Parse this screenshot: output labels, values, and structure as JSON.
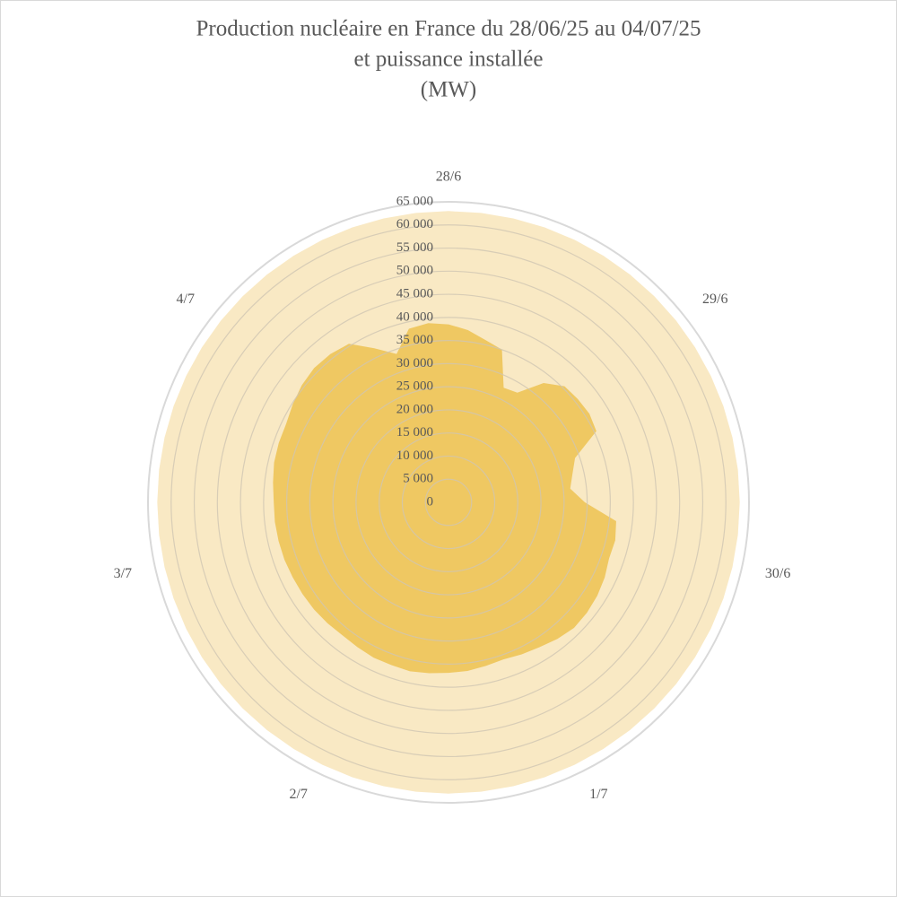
{
  "chart_data": {
    "type": "radar",
    "title": [
      "Production nucléaire en France du 28/06/25 au 04/07/25",
      "et puissance installée",
      "(MW)"
    ],
    "categories": [
      "28/6",
      null,
      null,
      null,
      null,
      null,
      null,
      null,
      "29/6",
      null,
      null,
      null,
      null,
      null,
      null,
      null,
      "30/6",
      null,
      null,
      null,
      null,
      null,
      null,
      null,
      "1/7",
      null,
      null,
      null,
      null,
      null,
      null,
      null,
      "2/7",
      null,
      null,
      null,
      null,
      null,
      null,
      null,
      "3/7",
      null,
      null,
      null,
      null,
      null,
      null,
      null,
      "4/7",
      null,
      null,
      null,
      null,
      null,
      null,
      null
    ],
    "series": [
      {
        "color": "#f9e9c4",
        "values": [
          63000,
          63000,
          63000,
          63000,
          63000,
          63000,
          63000,
          63000,
          63000,
          63000,
          63000,
          63000,
          63000,
          63000,
          63000,
          63000,
          63000,
          63000,
          63000,
          63000,
          63000,
          63000,
          63000,
          63000,
          63000,
          63000,
          63000,
          63000,
          63000,
          63000,
          63000,
          63000,
          63000,
          63000,
          63000,
          63000,
          63000,
          63000,
          63000,
          63000,
          63000,
          63000,
          63000,
          63000,
          63000,
          63000,
          63000,
          63000,
          63000,
          63000,
          63000,
          63000,
          63000,
          63000,
          63000,
          63000
        ]
      },
      {
        "color": "#efc862",
        "values": [
          38500,
          37500,
          36000,
          35000,
          27500,
          28000,
          33000,
          35500,
          35800,
          36000,
          35500,
          29000,
          27500,
          26500,
          29500,
          36500,
          37000,
          36800,
          37500,
          38000,
          38300,
          38400,
          37800,
          37000,
          36500,
          36000,
          36300,
          36700,
          36900,
          37200,
          37500,
          37300,
          37300,
          37000,
          36800,
          37000,
          37200,
          37300,
          37400,
          37600,
          37700,
          37800,
          37800,
          38200,
          38700,
          38900,
          39000,
          39800,
          40600,
          41100,
          41000,
          40500,
          37000,
          34000,
          38500,
          39000
        ]
      }
    ],
    "ylim": [
      0,
      65000
    ],
    "yticks": [
      0,
      {
        "value": 5000,
        "label": "5 000"
      },
      {
        "value": 10000,
        "label": "10 000"
      },
      {
        "value": 15000,
        "label": "15 000"
      },
      {
        "value": 20000,
        "label": "20 000"
      },
      {
        "value": 25000,
        "label": "25 000"
      },
      {
        "value": 30000,
        "label": "30 000"
      },
      {
        "value": 35000,
        "label": "35 000"
      },
      {
        "value": 40000,
        "label": "40 000"
      },
      {
        "value": 45000,
        "label": "45 000"
      },
      {
        "value": 50000,
        "label": "50 000"
      },
      {
        "value": 55000,
        "label": "55 000"
      },
      {
        "value": 60000,
        "label": "60 000"
      },
      {
        "value": 65000,
        "label": "65 000"
      }
    ],
    "grid": true
  }
}
